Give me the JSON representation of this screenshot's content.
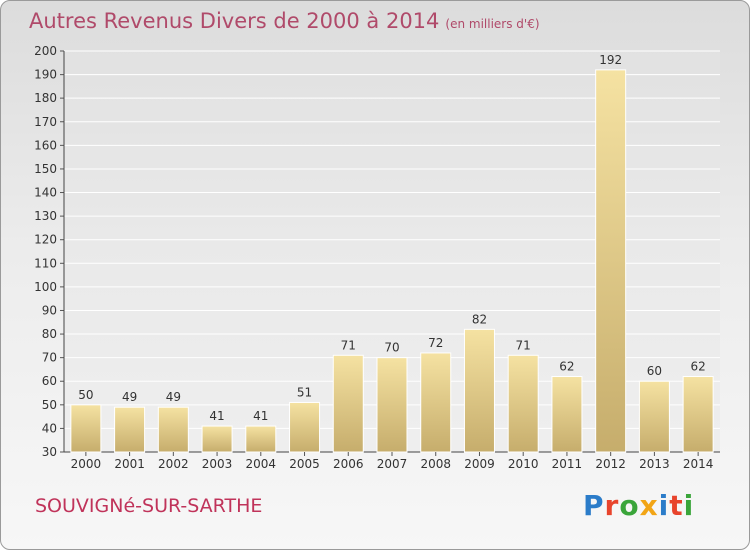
{
  "header": {
    "title": "Autres Revenus Divers de 2000 à 2014",
    "unit": "(en milliers d'€)"
  },
  "footer": {
    "commune": "SOUVIGNé-SUR-SARTHE",
    "logo": "Proxiti"
  },
  "colors": {
    "title": "#b04a6a",
    "commune": "#c0335a",
    "bar_light": "#f5e2a2",
    "bar_dark": "#c6ad6c",
    "logo": [
      "#2b7cc9",
      "#e8442c",
      "#3aa53a",
      "#f2a516",
      "#2b7cc9",
      "#e8442c",
      "#3aa53a"
    ]
  },
  "chart_data": {
    "type": "bar",
    "title": "Autres Revenus Divers de 2000 à 2014",
    "categories": [
      "2000",
      "2001",
      "2002",
      "2003",
      "2004",
      "2005",
      "2006",
      "2007",
      "2008",
      "2009",
      "2010",
      "2011",
      "2012",
      "2013",
      "2014"
    ],
    "values": [
      50,
      49,
      49,
      41,
      41,
      51,
      71,
      70,
      72,
      82,
      71,
      62,
      192,
      60,
      62
    ],
    "ylim": [
      30,
      200
    ],
    "yticks": [
      30,
      40,
      50,
      60,
      70,
      80,
      90,
      100,
      110,
      120,
      130,
      140,
      150,
      160,
      170,
      180,
      190,
      200
    ],
    "grid": true,
    "data_labels": true
  }
}
